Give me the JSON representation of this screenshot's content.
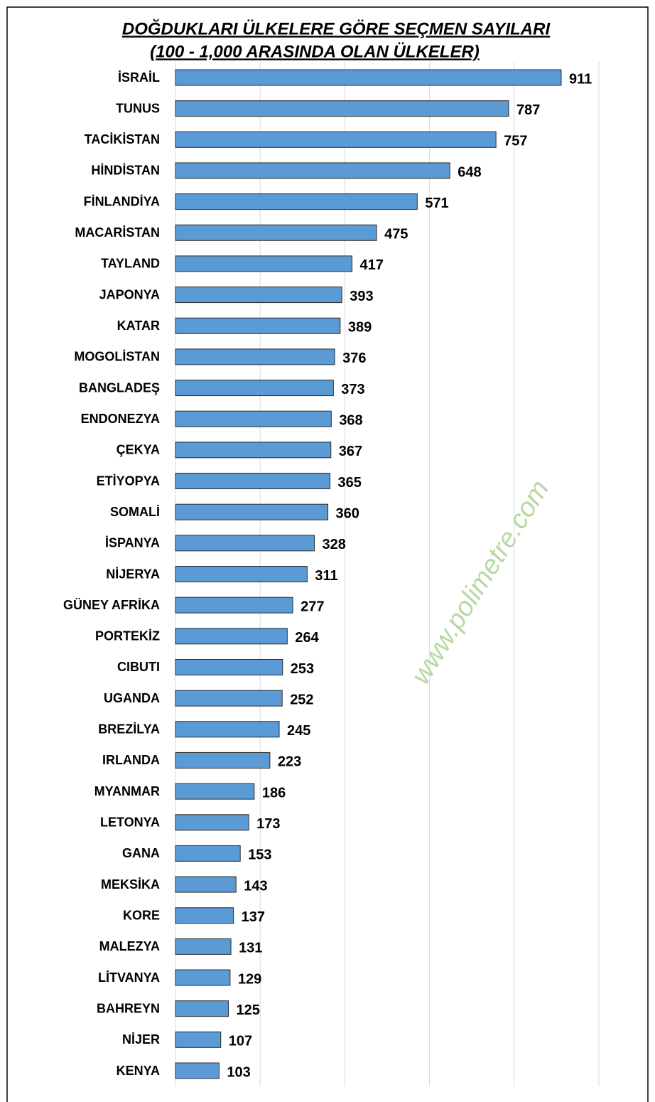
{
  "chart_data": {
    "type": "bar",
    "orientation": "horizontal",
    "title": "DOĞDUKLARI ÜLKELERE GÖRE SEÇMEN SAYILARI",
    "subtitle": "(100 - 1,000 ARASINDA OLAN ÜLKELER)",
    "annotation": "www.polimetre.com",
    "categories": [
      "İSRAİL",
      "TUNUS",
      "TACİKİSTAN",
      "HİNDİSTAN",
      "FİNLANDİYA",
      "MACARİSTAN",
      "TAYLAND",
      "JAPONYA",
      "KATAR",
      "MOGOLİSTAN",
      "BANGLADEŞ",
      "ENDONEZYA",
      "ÇEKYA",
      "ETİYOPYA",
      "SOMALİ",
      "İSPANYA",
      "NİJERYA",
      "GÜNEY AFRİKA",
      "PORTEKİZ",
      "CIBUTI",
      "UGANDA",
      "BREZİLYA",
      "IRLANDA",
      "MYANMAR",
      "LETONYA",
      "GANA",
      "MEKSİKA",
      "KORE",
      "MALEZYA",
      "LİTVANYA",
      "BAHREYN",
      "NİJER",
      "KENYA"
    ],
    "values": [
      911,
      787,
      757,
      648,
      571,
      475,
      417,
      393,
      389,
      376,
      373,
      368,
      367,
      365,
      360,
      328,
      311,
      277,
      264,
      253,
      252,
      245,
      223,
      186,
      173,
      153,
      143,
      137,
      131,
      129,
      125,
      107,
      103
    ],
    "color": "#5b9bd5",
    "xlim": [
      0,
      1000
    ],
    "xticks": [
      0,
      200,
      400,
      600,
      800,
      1000
    ],
    "grid": true
  }
}
